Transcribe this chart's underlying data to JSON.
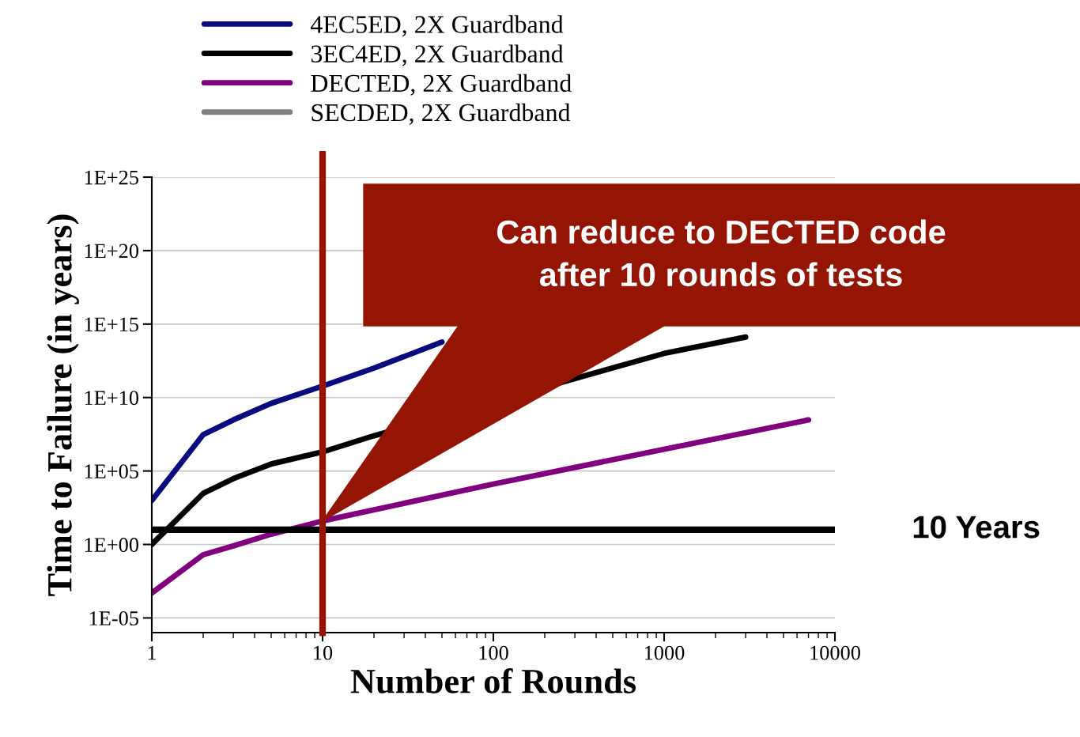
{
  "chart_data": {
    "type": "line",
    "xlabel": "Number of Rounds",
    "ylabel": "Time to Failure (in years)",
    "log": "xy",
    "grid": "y",
    "legend": "top",
    "marker": "none",
    "line_style": "solid",
    "xlim": [
      1,
      10000
    ],
    "xticks": [
      1,
      10,
      100,
      1000,
      10000
    ],
    "ylim": [
      1e-06,
      1e+25
    ],
    "yticks": [
      {
        "value": 1e-05,
        "label": "1E-05"
      },
      {
        "value": 1,
        "label": "1E+00"
      },
      {
        "value": 100000,
        "label": "1E+05"
      },
      {
        "value": 10000000000.0,
        "label": "1E+10"
      },
      {
        "value": 1000000000000000.0,
        "label": "1E+15"
      },
      {
        "value": 1e+20,
        "label": "1E+20"
      },
      {
        "value": 1e+25,
        "label": "1E+25"
      }
    ],
    "series": [
      {
        "name": "4EC5ED, 2X Guardband",
        "color": "#0b0b80",
        "x": [
          1,
          2,
          3,
          5,
          10,
          20,
          50
        ],
        "values": [
          1000.0,
          30000000.0,
          300000000.0,
          4000000000.0,
          60000000000.0,
          1000000000000.0,
          60000000000000.0
        ]
      },
      {
        "name": "3EC4ED, 2X Guardband",
        "color": "#000000",
        "x": [
          1,
          2,
          3,
          5,
          10,
          20,
          400,
          1000,
          3000
        ],
        "values": [
          1,
          3000.0,
          30000.0,
          300000.0,
          2000000.0,
          25000000.0,
          500000000000.0,
          10000000000000.0,
          130000000000000.0
        ]
      },
      {
        "name": "DECTED, 2X Guardband",
        "color": "#800080",
        "x": [
          1,
          2,
          3,
          5,
          10,
          100,
          1000,
          7000
        ],
        "values": [
          0.0005,
          0.2,
          0.8,
          5,
          40,
          13000.0,
          3000000.0,
          300000000.0
        ]
      },
      {
        "name": "SECDED, 2X Guardband",
        "color": "#808080"
      }
    ],
    "ref_lines": [
      {
        "axis": "y",
        "value": 10,
        "label": "10 Years",
        "color": "#000000"
      },
      {
        "axis": "x",
        "value": 10,
        "color": "#951505"
      }
    ],
    "annotations": [
      "Can reduce to DECTED code\nafter 10 rounds of tests"
    ]
  }
}
